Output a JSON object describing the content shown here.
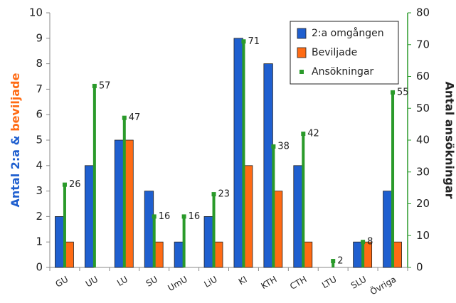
{
  "chart_data": {
    "type": "bar",
    "categories": [
      "GU",
      "UU",
      "LU",
      "SU",
      "UmU",
      "LiU",
      "KI",
      "KTH",
      "CTH",
      "LTU",
      "SLU",
      "Övriga"
    ],
    "series": [
      {
        "name": "2:a omgången",
        "color": "#1f5fcf",
        "kind": "bar",
        "values": [
          2,
          4,
          5,
          3,
          1,
          2,
          9,
          8,
          4,
          0,
          1,
          3
        ]
      },
      {
        "name": "Beviljade",
        "color": "#ff6b14",
        "kind": "bar",
        "values": [
          1,
          0,
          5,
          1,
          0,
          1,
          4,
          3,
          1,
          0,
          1,
          1
        ]
      },
      {
        "name": "Ansökningar",
        "color": "#2a9a2a",
        "kind": "stem",
        "axis": "y2",
        "values": [
          26,
          57,
          47,
          16,
          16,
          23,
          71,
          38,
          42,
          2,
          8,
          55
        ]
      }
    ],
    "y_label": [
      "Antal 2:a &",
      "beviljade"
    ],
    "y2_label": "Antal ansökningar",
    "ylim": [
      0,
      10
    ],
    "yticks": [
      0,
      1,
      2,
      3,
      4,
      5,
      6,
      7,
      8,
      9,
      10
    ],
    "y2lim": [
      0,
      80
    ],
    "y2ticks": [
      0,
      10,
      20,
      30,
      40,
      50,
      60,
      70,
      80
    ],
    "legend": "upper right"
  }
}
